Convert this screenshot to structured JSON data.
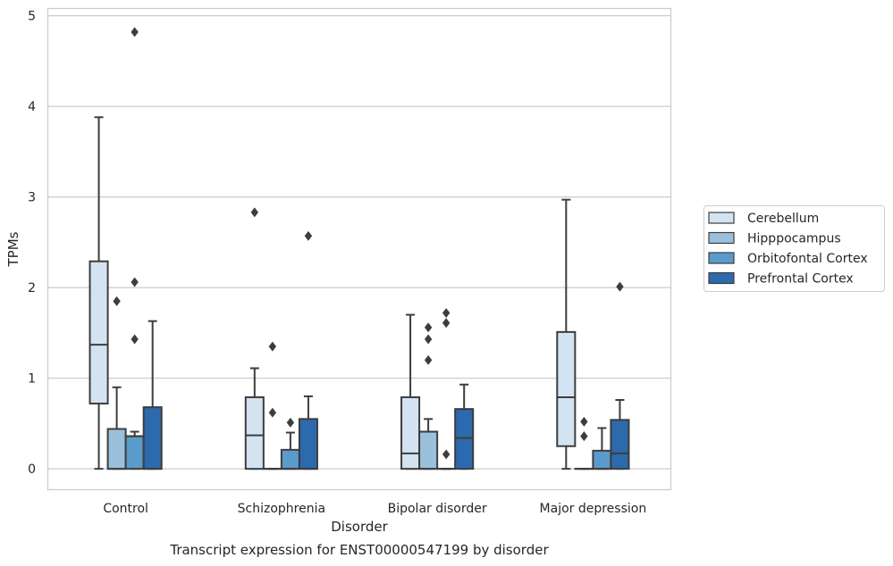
{
  "chart_data": {
    "type": "box",
    "title": "Transcript expression for ENST00000547199 by disorder",
    "xlabel": "Disorder",
    "ylabel": "TPMs",
    "ylim": [
      -0.23,
      5.08
    ],
    "yticks": [
      0,
      1,
      2,
      3,
      4,
      5
    ],
    "grid": true,
    "legend_position": "right",
    "categories": [
      "Control",
      "Schizophrenia",
      "Bipolar disorder",
      "Major depression"
    ],
    "series": [
      {
        "name": "Cerebellum",
        "color": "#d4e3f2",
        "boxes": [
          {
            "whisker_low": 0,
            "q1": 0.72,
            "median": 1.37,
            "q3": 2.29,
            "whisker_high": 3.88,
            "outliers": []
          },
          {
            "whisker_low": 0,
            "q1": 0,
            "median": 0.37,
            "q3": 0.79,
            "whisker_high": 1.11,
            "outliers": [
              2.83
            ]
          },
          {
            "whisker_low": 0,
            "q1": 0,
            "median": 0.17,
            "q3": 0.79,
            "whisker_high": 1.7,
            "outliers": []
          },
          {
            "whisker_low": 0,
            "q1": 0.25,
            "median": 0.79,
            "q3": 1.51,
            "whisker_high": 2.97,
            "outliers": []
          }
        ]
      },
      {
        "name": "Hipppocampus",
        "color": "#9ac0dc",
        "boxes": [
          {
            "whisker_low": 0,
            "q1": 0,
            "median": 0,
            "q3": 0.44,
            "whisker_high": 0.9,
            "outliers": [
              1.85
            ]
          },
          {
            "whisker_low": 0,
            "q1": 0,
            "median": 0,
            "q3": 0,
            "whisker_high": 0,
            "outliers": [
              0.62,
              1.35
            ]
          },
          {
            "whisker_low": 0,
            "q1": 0,
            "median": 0,
            "q3": 0.41,
            "whisker_high": 0.55,
            "outliers": [
              1.2,
              1.43,
              1.56
            ]
          },
          {
            "whisker_low": 0,
            "q1": 0,
            "median": 0,
            "q3": 0,
            "whisker_high": 0,
            "outliers": [
              0.36,
              0.52
            ]
          }
        ]
      },
      {
        "name": "Orbitofontal Cortex",
        "color": "#5b9bcb",
        "boxes": [
          {
            "whisker_low": 0,
            "q1": 0,
            "median": 0.36,
            "q3": 0.36,
            "whisker_high": 0.41,
            "outliers": [
              1.43,
              2.06,
              4.82
            ]
          },
          {
            "whisker_low": 0,
            "q1": 0,
            "median": 0,
            "q3": 0.21,
            "whisker_high": 0.4,
            "outliers": [
              0.51
            ]
          },
          {
            "whisker_low": 0,
            "q1": 0,
            "median": 0,
            "q3": 0,
            "whisker_high": 0,
            "outliers": [
              0.16,
              1.61,
              1.72
            ]
          },
          {
            "whisker_low": 0,
            "q1": 0,
            "median": 0,
            "q3": 0.2,
            "whisker_high": 0.45,
            "outliers": []
          }
        ]
      },
      {
        "name": "Prefrontal Cortex",
        "color": "#2c6aad",
        "boxes": [
          {
            "whisker_low": 0,
            "q1": 0,
            "median": 0,
            "q3": 0.68,
            "whisker_high": 1.63,
            "outliers": []
          },
          {
            "whisker_low": 0,
            "q1": 0,
            "median": 0,
            "q3": 0.55,
            "whisker_high": 0.8,
            "outliers": [
              2.57
            ]
          },
          {
            "whisker_low": 0,
            "q1": 0,
            "median": 0.34,
            "q3": 0.66,
            "whisker_high": 0.93,
            "outliers": []
          },
          {
            "whisker_low": 0,
            "q1": 0,
            "median": 0.17,
            "q3": 0.54,
            "whisker_high": 0.76,
            "outliers": [
              2.01
            ]
          }
        ]
      }
    ]
  }
}
